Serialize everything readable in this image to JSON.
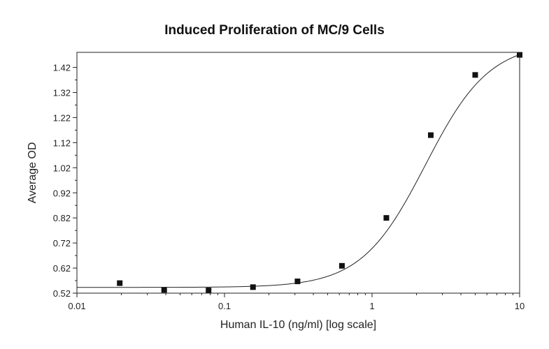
{
  "chart_data": {
    "type": "scatter",
    "title": "Induced Proliferation of MC/9 Cells",
    "xlabel": "Human IL-10 (ng/ml) [log scale]",
    "ylabel": "Average OD",
    "xscale": "log",
    "xlim": [
      0.01,
      10
    ],
    "ylim": [
      0.52,
      1.48
    ],
    "xticks": [
      {
        "value": 0.01,
        "label": "0.01"
      },
      {
        "value": 0.1,
        "label": "0.1"
      },
      {
        "value": 1,
        "label": "1"
      },
      {
        "value": 10,
        "label": "10"
      }
    ],
    "yticks": [
      {
        "value": 0.52,
        "label": "0.52"
      },
      {
        "value": 0.62,
        "label": "0.62"
      },
      {
        "value": 0.72,
        "label": "0.72"
      },
      {
        "value": 0.82,
        "label": "0.82"
      },
      {
        "value": 0.92,
        "label": "0.92"
      },
      {
        "value": 1.02,
        "label": "1.02"
      },
      {
        "value": 1.12,
        "label": "1.12"
      },
      {
        "value": 1.22,
        "label": "1.22"
      },
      {
        "value": 1.32,
        "label": "1.32"
      },
      {
        "value": 1.42,
        "label": "1.42"
      }
    ],
    "grid": false,
    "legend": "none",
    "series": [
      {
        "x": [
          0.0195,
          0.039,
          0.078,
          0.156,
          0.3125,
          0.625,
          1.25,
          2.5,
          5,
          10
        ],
        "y": [
          0.56,
          0.533,
          0.531,
          0.544,
          0.567,
          0.629,
          0.82,
          1.15,
          1.39,
          1.47
        ]
      }
    ],
    "fit_curve": {
      "type": "4PL",
      "bottom": 0.543,
      "top": 1.52,
      "ec50": 2.3,
      "hill": 2.0
    }
  }
}
